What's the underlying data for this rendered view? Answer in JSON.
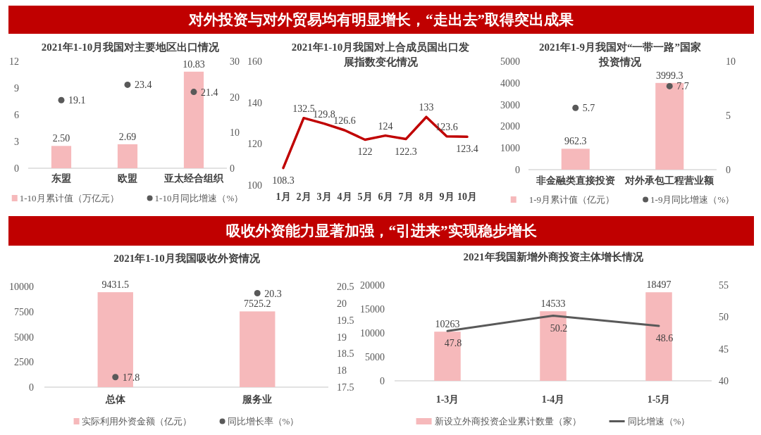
{
  "chart_data": [
    {
      "type": "other",
      "title": "对外投资与对外贸易均有明显增长，“走出去”取得突出成果"
    },
    {
      "type": "bar",
      "title": "2021年1-10月我国对主要地区出口情况",
      "categories": [
        "东盟",
        "欧盟",
        "亚太经合组织"
      ],
      "ylim": [
        0,
        12
      ],
      "yticks": [
        0,
        3,
        6,
        9,
        12
      ],
      "y2lim": [
        0,
        30
      ],
      "y2ticks": [
        0,
        10,
        20,
        30
      ],
      "data_labels": true,
      "legend": "bottom",
      "marker": "circle",
      "series": [
        {
          "name": "1-10月累计值（万亿元）",
          "type": "bar",
          "color": "#f6b9bb",
          "values": [
            2.5,
            2.69,
            10.83
          ],
          "value_labels": [
            "2.50",
            "2.69",
            "10.83"
          ]
        },
        {
          "name": "1-10月同比增速（%）",
          "type": "scatter",
          "axis": "y2",
          "color": "#595959",
          "values": [
            19.1,
            23.4,
            21.4
          ]
        }
      ]
    },
    {
      "type": "line",
      "title": "2021年1-10月我国对上合成员国出口发展指数变化情况",
      "categories": [
        "1月",
        "2月",
        "3月",
        "4月",
        "5月",
        "6月",
        "7月",
        "8月",
        "9月",
        "10月"
      ],
      "ylim": [
        100,
        160
      ],
      "yticks": [
        100,
        120,
        140,
        160
      ],
      "data_labels": true,
      "series": [
        {
          "type": "line",
          "color": "#c00000",
          "values": [
            108.3,
            132.5,
            129.8,
            126.6,
            122,
            124,
            122.3,
            133,
            123.6,
            123.4
          ]
        }
      ]
    },
    {
      "type": "bar",
      "title": "2021年1-9月我国对“一带一路”国家投资情况",
      "categories": [
        "非金融类直接投资",
        "对外承包工程营业额"
      ],
      "ylim": [
        0,
        5000
      ],
      "yticks": [
        0,
        1000,
        2000,
        3000,
        4000,
        5000
      ],
      "y2lim": [
        0,
        10
      ],
      "y2ticks": [
        0,
        5,
        10
      ],
      "data_labels": true,
      "legend": "bottom",
      "marker": "circle",
      "series": [
        {
          "name": "1-9月累计值（亿元）",
          "type": "bar",
          "color": "#f6b9bb",
          "values": [
            962.3,
            3999.3
          ]
        },
        {
          "name": "1-9月同比增速（%）",
          "type": "scatter",
          "axis": "y2",
          "color": "#595959",
          "values": [
            5.7,
            7.7
          ]
        }
      ]
    },
    {
      "type": "other",
      "title": "吸收外资能力显著加强，“引进来”实现稳步增长"
    },
    {
      "type": "bar",
      "title": "2021年1-10月我国吸收外资情况",
      "categories": [
        "总体",
        "服务业"
      ],
      "ylim": [
        0,
        10000
      ],
      "yticks": [
        0,
        2500,
        5000,
        7500,
        10000
      ],
      "y2lim": [
        17.5,
        20.5
      ],
      "y2ticks": [
        17.5,
        18,
        18.5,
        19,
        19.5,
        20,
        20.5
      ],
      "data_labels": true,
      "legend": "bottom",
      "marker": "circle",
      "series": [
        {
          "name": "实际利用外资金额（亿元）",
          "type": "bar",
          "color": "#f6b9bb",
          "values": [
            9431.5,
            7525.2
          ]
        },
        {
          "name": "同比增长率（%）",
          "type": "scatter",
          "axis": "y2",
          "color": "#595959",
          "values": [
            17.8,
            20.3
          ]
        }
      ]
    },
    {
      "type": "bar",
      "title": "2021年我国新增外商投资主体增长情况",
      "categories": [
        "1-3月",
        "1-4月",
        "1-5月"
      ],
      "ylim": [
        0,
        20000
      ],
      "yticks": [
        0,
        5000,
        10000,
        15000,
        20000
      ],
      "y2lim": [
        40,
        55
      ],
      "y2ticks": [
        40,
        45,
        50,
        55
      ],
      "data_labels": true,
      "legend": "bottom",
      "series": [
        {
          "name": "新设立外商投资企业累计数量（家）",
          "type": "bar",
          "color": "#f6b9bb",
          "values": [
            10263,
            14533,
            18497
          ]
        },
        {
          "name": "同比增速（%）",
          "type": "line",
          "axis": "y2",
          "color": "#595959",
          "values": [
            47.8,
            50.2,
            48.6
          ]
        }
      ]
    }
  ]
}
